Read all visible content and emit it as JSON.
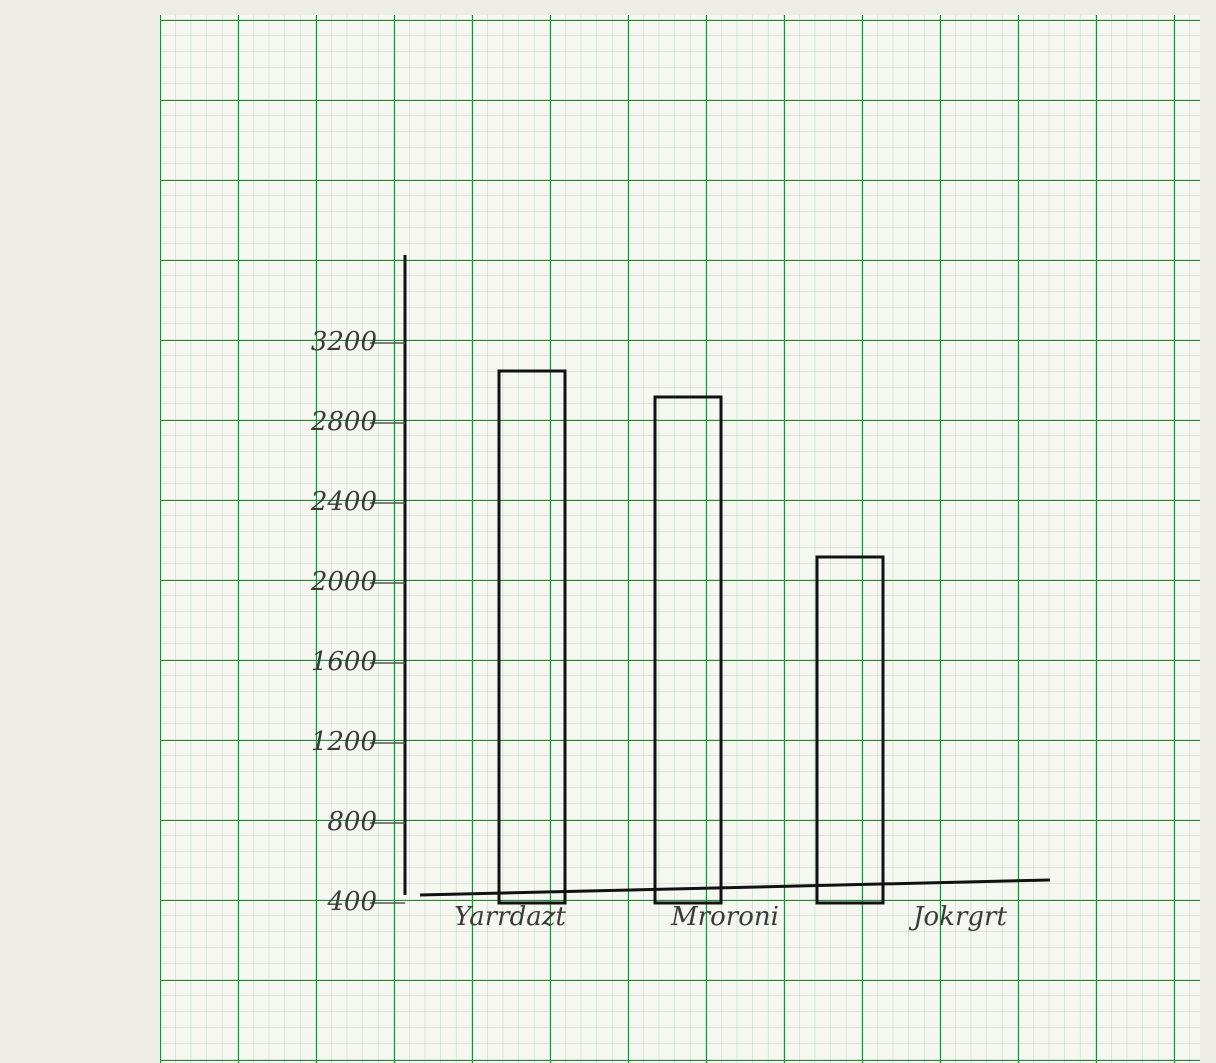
{
  "chart_data": {
    "type": "bar",
    "categories": [
      "Yarrdazt",
      "Mroroni",
      "Jokrgrt"
    ],
    "values": [
      3060,
      2930,
      2130
    ],
    "color": "none",
    "ylim": [
      400,
      3640
    ],
    "yticks": [
      400,
      800,
      1200,
      1600,
      2000,
      2400,
      2800,
      3200
    ],
    "grid": false
  }
}
